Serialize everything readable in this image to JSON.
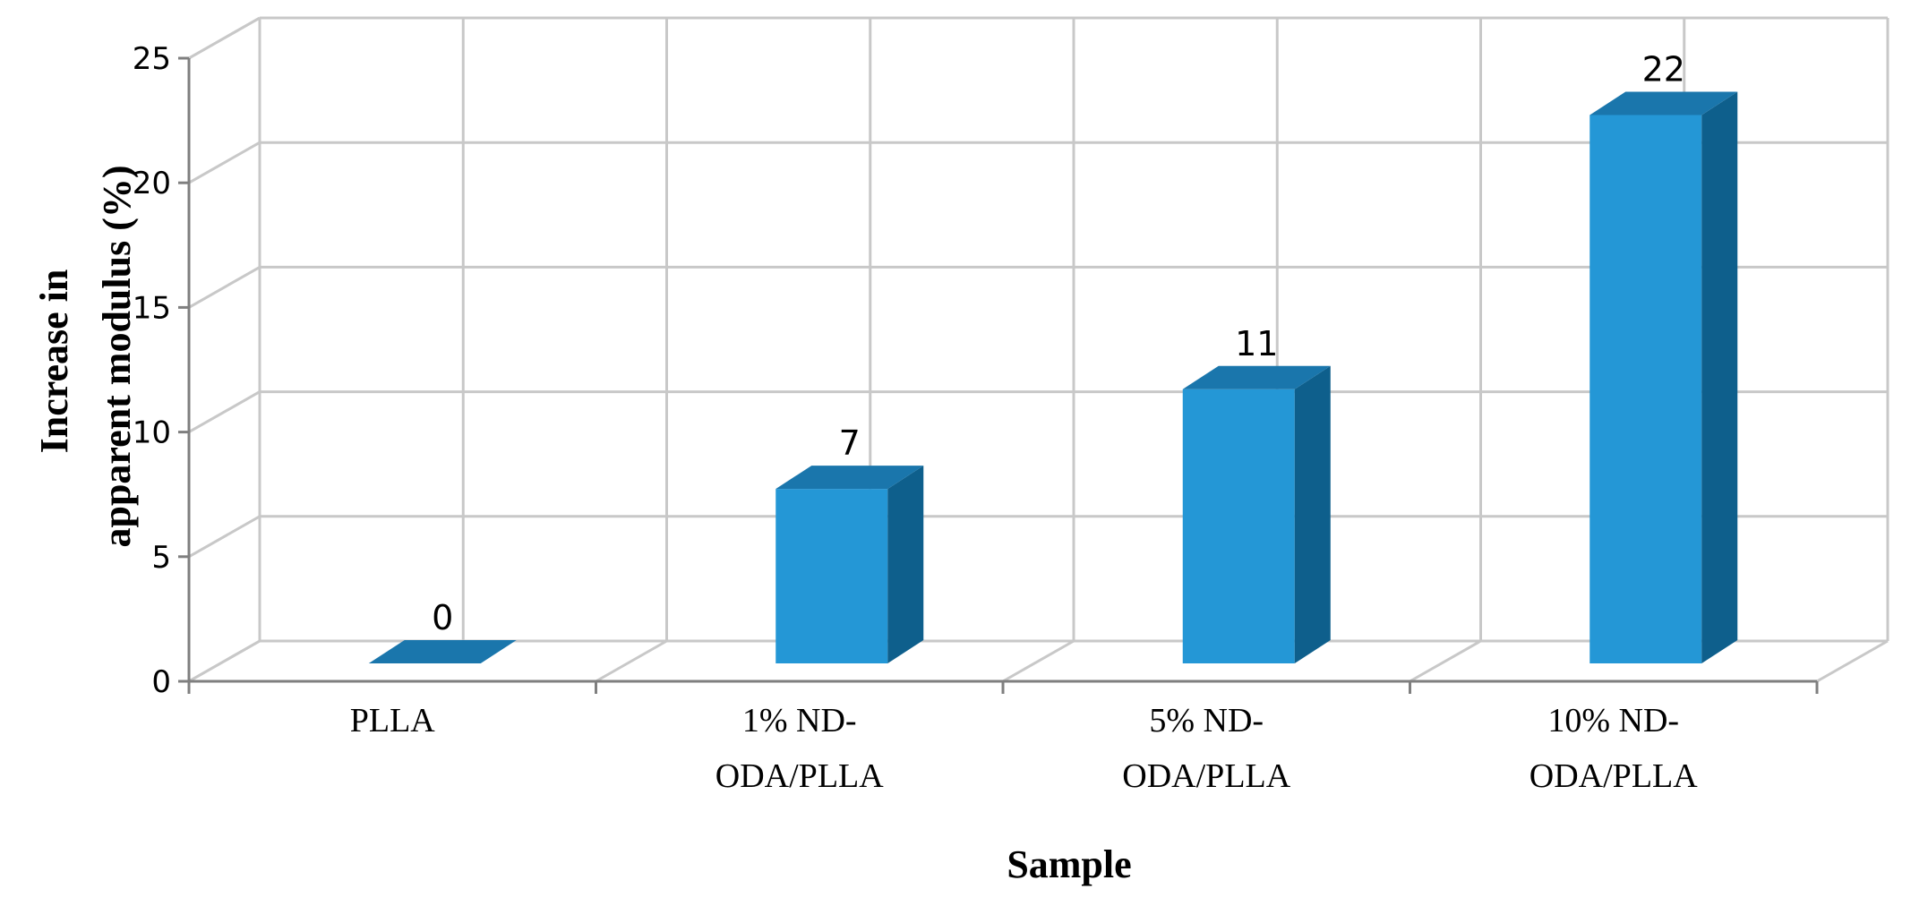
{
  "chart_data": {
    "type": "bar",
    "style": "3d-column",
    "categories": [
      [
        "PLLA"
      ],
      [
        "1% ND-",
        "ODA/PLLA"
      ],
      [
        "5% ND-",
        "ODA/PLLA"
      ],
      [
        "10% ND-",
        "ODA/PLLA"
      ]
    ],
    "values": [
      0,
      7,
      11,
      22
    ],
    "data_labels": [
      "0",
      "7",
      "11",
      "22"
    ],
    "xlabel": "Sample",
    "ylabel": [
      "Increase in",
      "apparent modulus (%)"
    ],
    "ylim": [
      0,
      25
    ],
    "yticks": [
      "0",
      "5",
      "10",
      "15",
      "20",
      "25"
    ],
    "grid": true,
    "colors": {
      "bar_front": "#2497d6",
      "bar_top": "#1a76ac",
      "bar_side": "#0e5f8c",
      "grid": "#c8c8c8",
      "axis": "#7f7f7f"
    }
  }
}
